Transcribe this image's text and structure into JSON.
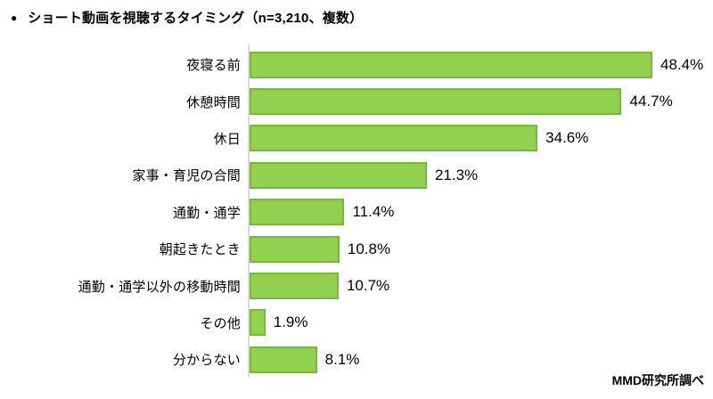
{
  "title": {
    "bullet": "●",
    "text": "ショート動画を視聴するタイミング（n=3,210、複数）"
  },
  "footer": {
    "source": "MMD研究所調べ"
  },
  "chart_data": {
    "type": "bar",
    "orientation": "horizontal",
    "title": "ショート動画を視聴するタイミング（n=3,210、複数）",
    "categories": [
      "夜寝る前",
      "休憩時間",
      "休日",
      "家事・育児の合間",
      "通勤・通学",
      "朝起きたとき",
      "通勤・通学以外の移動時間",
      "その他",
      "分からない"
    ],
    "values": [
      48.4,
      44.7,
      34.6,
      21.3,
      11.4,
      10.8,
      10.7,
      1.9,
      8.1
    ],
    "value_suffix": "%",
    "xlabel": "",
    "ylabel": "",
    "xlim": [
      0,
      53.5
    ],
    "grid": false,
    "legend": false,
    "bar_color": "#92d050",
    "bar_border_color": "#76b83e",
    "axis_line_color": "#d9d9d9",
    "source_note": "MMD研究所調べ"
  }
}
